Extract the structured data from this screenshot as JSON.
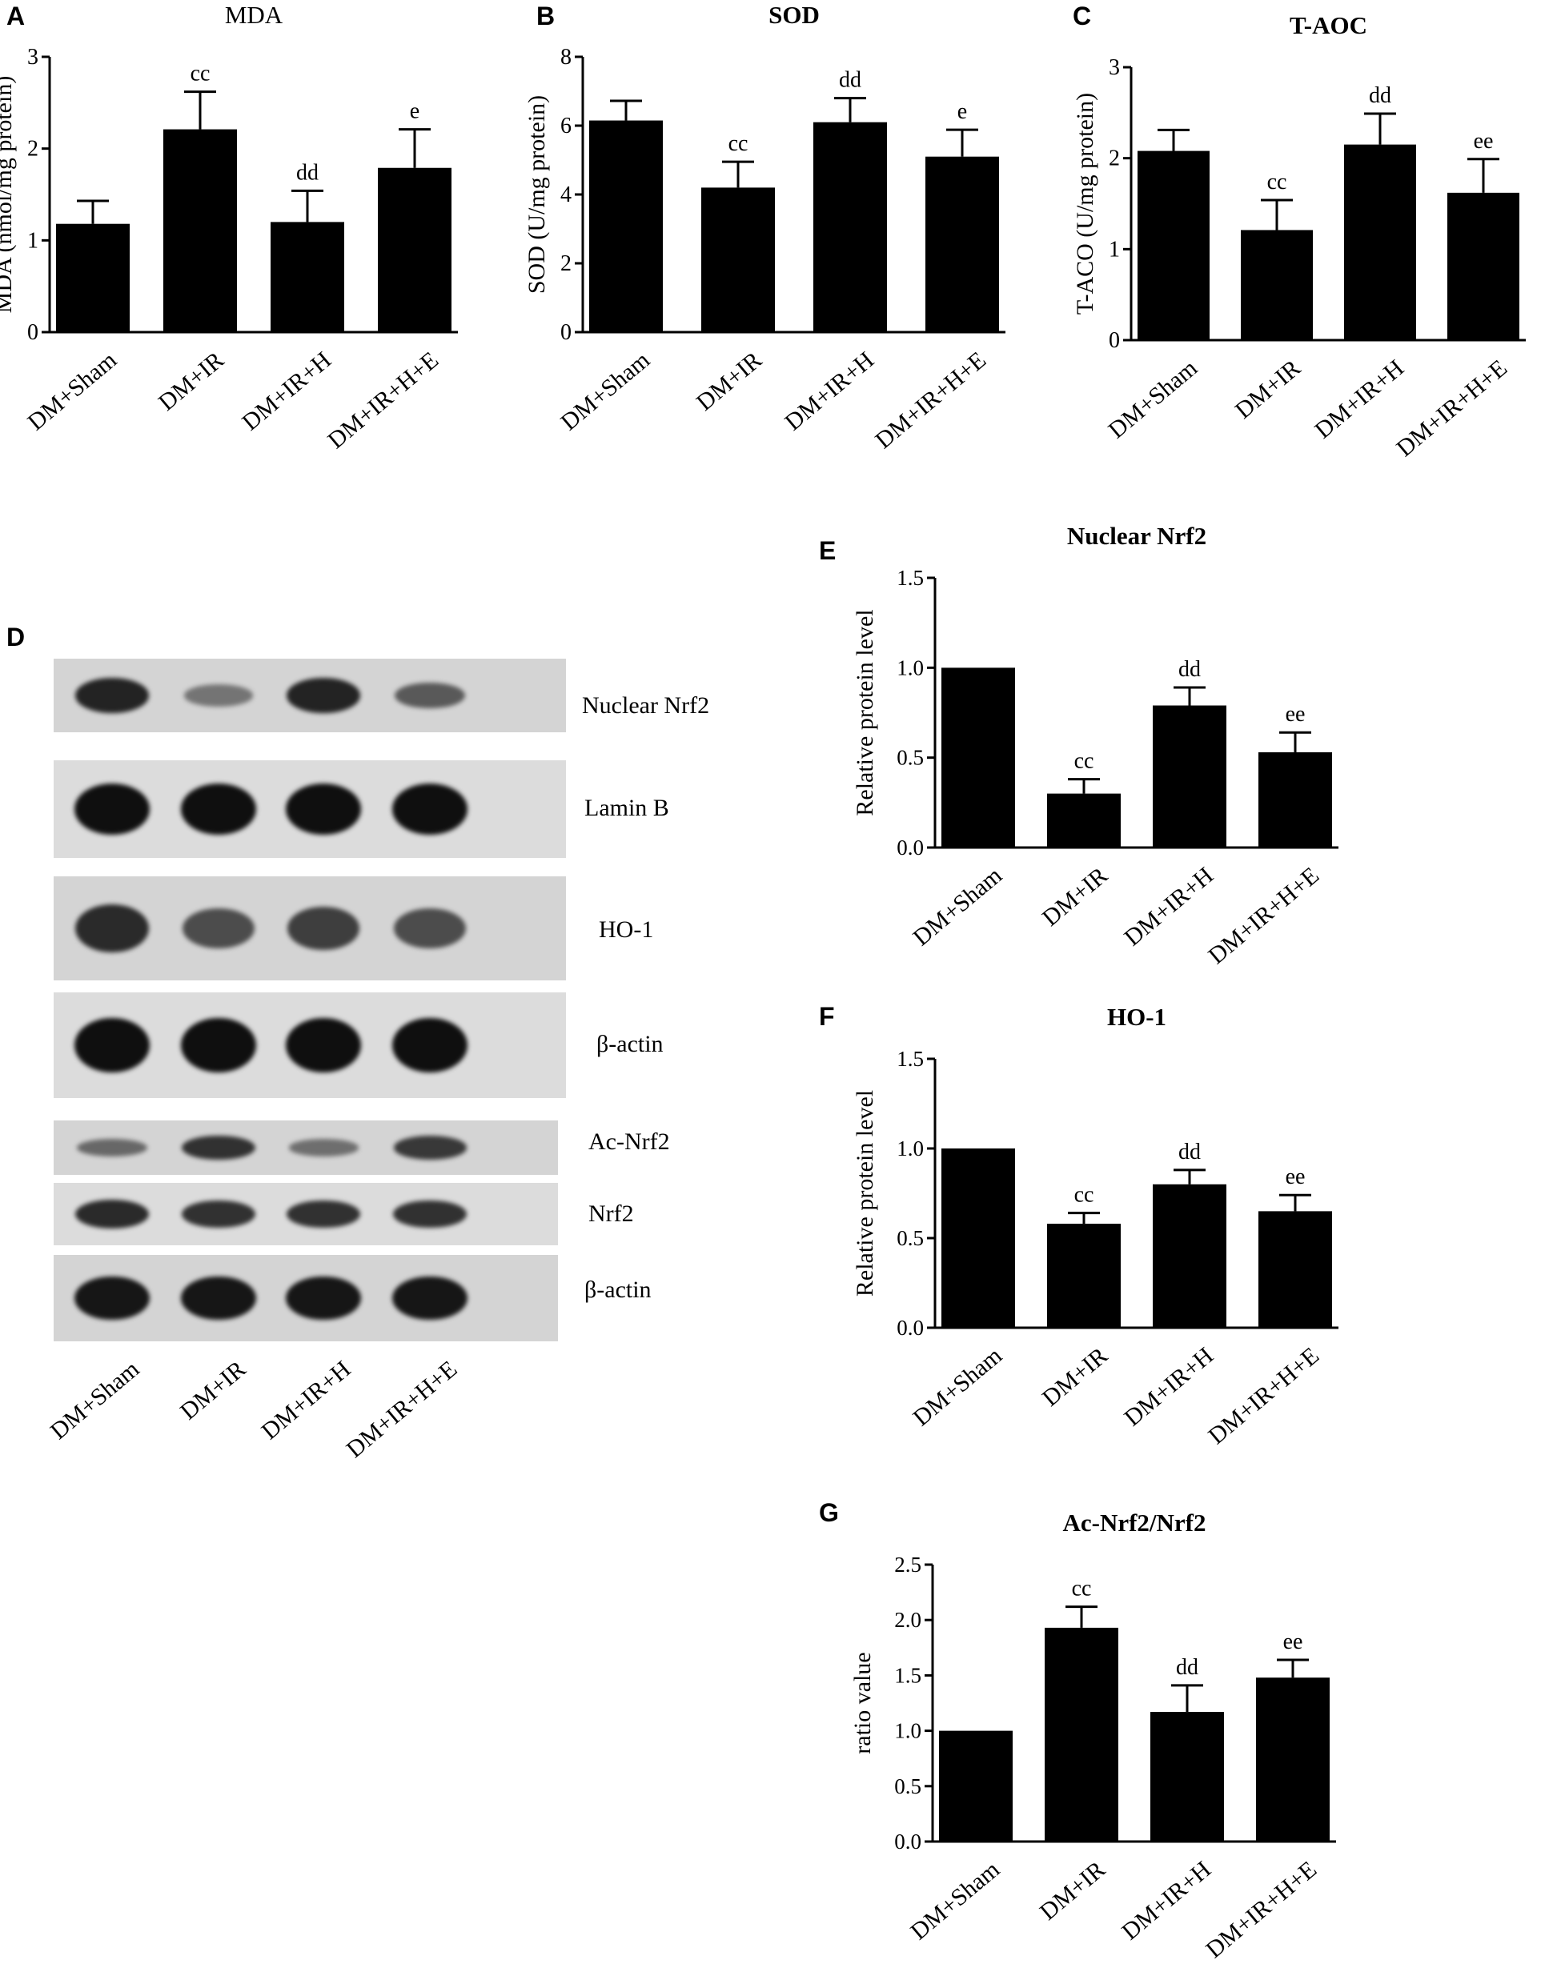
{
  "panel_letters": {
    "A": "A",
    "B": "B",
    "C": "C",
    "D": "D",
    "E": "E",
    "F": "F",
    "G": "G"
  },
  "chart_data": [
    {
      "id": "A",
      "type": "bar",
      "title": "MDA",
      "ylabel": "MDA (nmol/mg protein)",
      "categories": [
        "DM+Sham",
        "DM+IR",
        "DM+IR+H",
        "DM+IR+H+E"
      ],
      "values": [
        1.18,
        2.21,
        1.2,
        1.79
      ],
      "errors": [
        0.25,
        0.41,
        0.34,
        0.42
      ],
      "annotations": [
        "",
        "cc",
        "dd",
        "e"
      ],
      "ylim": [
        0,
        3
      ],
      "yticks": [
        "0",
        "1",
        "2",
        "3"
      ]
    },
    {
      "id": "B",
      "type": "bar",
      "title": "SOD",
      "ylabel": "SOD (U/mg protein)",
      "categories": [
        "DM+Sham",
        "DM+IR",
        "DM+IR+H",
        "DM+IR+H+E"
      ],
      "values": [
        6.15,
        4.2,
        6.1,
        5.1
      ],
      "errors": [
        0.57,
        0.75,
        0.7,
        0.78
      ],
      "annotations": [
        "",
        "cc",
        "dd",
        "e"
      ],
      "ylim": [
        0,
        8
      ],
      "yticks": [
        "0",
        "2",
        "4",
        "6",
        "8"
      ]
    },
    {
      "id": "C",
      "type": "bar",
      "title": "T-AOC",
      "ylabel": "T-ACO (U/mg protein)",
      "categories": [
        "DM+Sham",
        "DM+IR",
        "DM+IR+H",
        "DM+IR+H+E"
      ],
      "values": [
        2.08,
        1.21,
        2.15,
        1.62
      ],
      "errors": [
        0.23,
        0.33,
        0.34,
        0.37
      ],
      "annotations": [
        "",
        "cc",
        "dd",
        "ee"
      ],
      "ylim": [
        0,
        3
      ],
      "yticks": [
        "0",
        "1",
        "2",
        "3"
      ]
    },
    {
      "id": "E",
      "type": "bar",
      "title": "Nuclear Nrf2",
      "ylabel": "Relative protein level",
      "categories": [
        "DM+Sham",
        "DM+IR",
        "DM+IR+H",
        "DM+IR+H+E"
      ],
      "values": [
        1.0,
        0.3,
        0.79,
        0.53
      ],
      "errors": [
        0,
        0.08,
        0.1,
        0.11
      ],
      "annotations": [
        "",
        "cc",
        "dd",
        "ee"
      ],
      "ylim": [
        0,
        1.5
      ],
      "yticks": [
        "0.0",
        "0.5",
        "1.0",
        "1.5"
      ]
    },
    {
      "id": "F",
      "type": "bar",
      "title": "HO-1",
      "ylabel": "Relative protein level",
      "categories": [
        "DM+Sham",
        "DM+IR",
        "DM+IR+H",
        "DM+IR+H+E"
      ],
      "values": [
        1.0,
        0.58,
        0.8,
        0.65
      ],
      "errors": [
        0,
        0.06,
        0.08,
        0.09
      ],
      "annotations": [
        "",
        "cc",
        "dd",
        "ee"
      ],
      "ylim": [
        0,
        1.5
      ],
      "yticks": [
        "0.0",
        "0.5",
        "1.0",
        "1.5"
      ]
    },
    {
      "id": "G",
      "type": "bar",
      "title": "Ac-Nrf2/Nrf2",
      "ylabel": "ratio value",
      "categories": [
        "DM+Sham",
        "DM+IR",
        "DM+IR+H",
        "DM+IR+H+E"
      ],
      "values": [
        1.0,
        1.93,
        1.17,
        1.48
      ],
      "errors": [
        0,
        0.19,
        0.24,
        0.16
      ],
      "annotations": [
        "",
        "cc",
        "dd",
        "ee"
      ],
      "ylim": [
        0,
        2.5
      ],
      "yticks": [
        "0.0",
        "0.5",
        "1.0",
        "1.5",
        "2.0",
        "2.5"
      ]
    }
  ],
  "blot": {
    "labels": [
      "Nuclear Nrf2",
      "Lamin B",
      "HO-1",
      "β-actin",
      "Ac-Nrf2",
      "Nrf2",
      "β-actin"
    ],
    "lanes": [
      "DM+Sham",
      "DM+IR",
      "DM+IR+H",
      "DM+IR+H+E"
    ],
    "band_intensity": [
      [
        0.85,
        0.25,
        0.85,
        0.45
      ],
      [
        1.0,
        1.0,
        1.0,
        1.0
      ],
      [
        0.8,
        0.55,
        0.65,
        0.55
      ],
      [
        1.0,
        1.0,
        1.0,
        1.0
      ],
      [
        0.35,
        0.75,
        0.3,
        0.7
      ],
      [
        0.8,
        0.75,
        0.75,
        0.75
      ],
      [
        0.95,
        0.95,
        0.95,
        0.95
      ]
    ]
  }
}
